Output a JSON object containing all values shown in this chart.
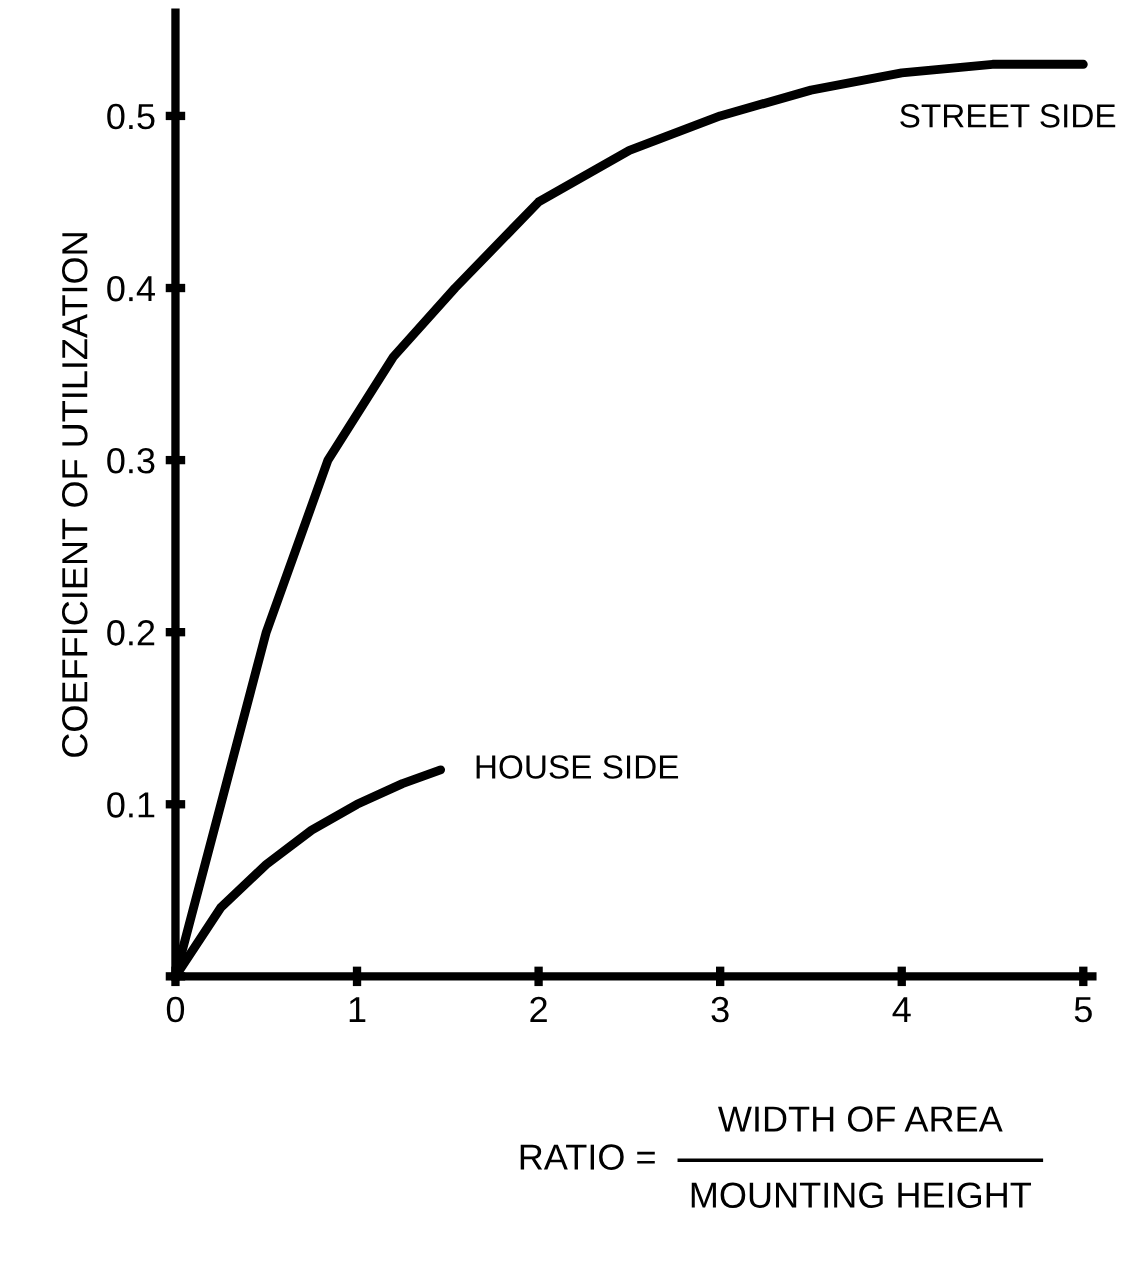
{
  "chart_data": {
    "type": "line",
    "xlabel": "RATIO = WIDTH OF AREA\nMOUNTING HEIGHT",
    "ylabel": "COEFFICIENT OF UTILIZATION",
    "series": [
      {
        "name": "STREET SIDE",
        "color": "#000000",
        "x": [
          0,
          0.25,
          0.5,
          0.84,
          1.2,
          1.54,
          2,
          2.5,
          3,
          3.5,
          4,
          4.5,
          5
        ],
        "values": [
          0,
          0.1,
          0.2,
          0.3,
          0.36,
          0.4,
          0.45,
          0.48,
          0.5,
          0.515,
          0.525,
          0.53,
          0.53
        ]
      },
      {
        "name": "HOUSE SIDE",
        "color": "#000000",
        "x": [
          0,
          0.25,
          0.5,
          0.75,
          1,
          1.25,
          1.46
        ],
        "values": [
          0,
          0.04,
          0.065,
          0.085,
          0.1,
          0.112,
          0.12
        ]
      }
    ],
    "xlim": [
      0,
      5.05
    ],
    "ylim": [
      0,
      0.56
    ],
    "xticks": [
      0,
      1,
      2,
      3,
      4,
      5
    ],
    "yticks": [
      {
        "value": 0,
        "label": null
      },
      0.1,
      0.2,
      0.3,
      0.4,
      0.5
    ],
    "grid": false,
    "legend": false,
    "marker": "none",
    "line_style": "solid"
  }
}
